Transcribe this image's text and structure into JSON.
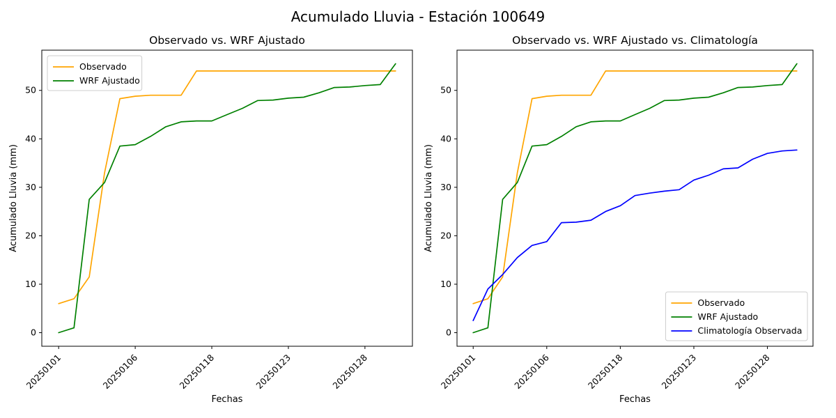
{
  "figure": {
    "title": "Acumulado Lluvia - Estación 100649",
    "background_color": "#ffffff"
  },
  "chart_data": [
    {
      "type": "line",
      "title": "Observado vs. WRF Ajustado",
      "xlabel": "Fechas",
      "ylabel": "Acumulado Lluvia (mm)",
      "x_tick_labels": [
        "20250101",
        "20250106",
        "20250118",
        "20250123",
        "20250128"
      ],
      "x_tick_indices": [
        0,
        5,
        10,
        15,
        20
      ],
      "y_ticks": [
        0,
        10,
        20,
        30,
        40,
        50
      ],
      "xlim": [
        -1.1,
        23.1
      ],
      "ylim": [
        -2.8,
        58.3
      ],
      "grid": false,
      "legend_position": "upper-left",
      "series": [
        {
          "name": "Observado",
          "color": "#ffa500",
          "values": [
            6.0,
            7.0,
            11.5,
            33.0,
            48.3,
            48.8,
            49.0,
            49.0,
            49.0,
            54.0,
            54.0,
            54.0,
            54.0,
            54.0,
            54.0,
            54.0,
            54.0,
            54.0,
            54.0,
            54.0,
            54.0,
            54.0,
            54.0
          ]
        },
        {
          "name": "WRF Ajustado",
          "color": "#008000",
          "values": [
            0.0,
            1.0,
            27.5,
            31.0,
            38.5,
            38.8,
            40.5,
            42.5,
            43.5,
            43.7,
            43.7,
            45.0,
            46.3,
            47.9,
            48.0,
            48.4,
            48.6,
            49.5,
            50.6,
            50.7,
            51.0,
            51.2,
            55.5
          ]
        }
      ]
    },
    {
      "type": "line",
      "title": "Observado vs. WRF Ajustado vs. Climatología",
      "xlabel": "Fechas",
      "ylabel": "Acumulado Lluvia (mm)",
      "x_tick_labels": [
        "20250101",
        "20250106",
        "20250118",
        "20250123",
        "20250128"
      ],
      "x_tick_indices": [
        0,
        5,
        10,
        15,
        20
      ],
      "y_ticks": [
        0,
        10,
        20,
        30,
        40,
        50
      ],
      "xlim": [
        -1.1,
        23.1
      ],
      "ylim": [
        -2.8,
        58.3
      ],
      "grid": false,
      "legend_position": "lower-right",
      "series": [
        {
          "name": "Observado",
          "color": "#ffa500",
          "values": [
            6.0,
            7.0,
            11.5,
            33.0,
            48.3,
            48.8,
            49.0,
            49.0,
            49.0,
            54.0,
            54.0,
            54.0,
            54.0,
            54.0,
            54.0,
            54.0,
            54.0,
            54.0,
            54.0,
            54.0,
            54.0,
            54.0,
            54.0
          ]
        },
        {
          "name": "WRF Ajustado",
          "color": "#008000",
          "values": [
            0.0,
            1.0,
            27.5,
            31.0,
            38.5,
            38.8,
            40.5,
            42.5,
            43.5,
            43.7,
            43.7,
            45.0,
            46.3,
            47.9,
            48.0,
            48.4,
            48.6,
            49.5,
            50.6,
            50.7,
            51.0,
            51.2,
            55.5
          ]
        },
        {
          "name": "Climatología Observada",
          "color": "#0000ff",
          "values": [
            2.5,
            9.0,
            12.0,
            15.5,
            18.0,
            18.8,
            22.7,
            22.8,
            23.2,
            25.0,
            26.2,
            28.3,
            28.8,
            29.2,
            29.5,
            31.5,
            32.5,
            33.8,
            34.0,
            35.8,
            37.0,
            37.5,
            37.7
          ]
        }
      ]
    }
  ]
}
